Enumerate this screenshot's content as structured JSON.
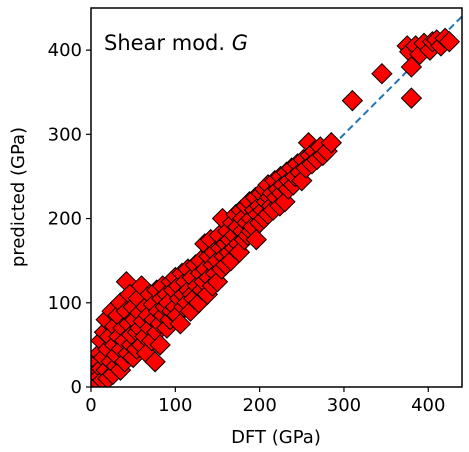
{
  "chart_data": {
    "type": "scatter",
    "annotation": "Shear mod. ",
    "annotation_symbol": "G",
    "xlabel": "DFT (GPa)",
    "ylabel": "predicted (GPa)",
    "xlim": [
      0,
      440
    ],
    "ylim": [
      0,
      450
    ],
    "xticks": [
      0,
      100,
      200,
      300,
      400
    ],
    "yticks": [
      0,
      100,
      200,
      300,
      400
    ],
    "grid": false,
    "marker": "diamond",
    "marker_color": "#ff0000",
    "marker_edge_color": "#000000",
    "reference_line": {
      "style": "dashed",
      "color": "#1f77b4",
      "x": [
        0,
        440
      ],
      "y": [
        0,
        440
      ]
    },
    "points": [
      [
        2,
        5
      ],
      [
        4,
        10
      ],
      [
        5,
        2
      ],
      [
        6,
        18
      ],
      [
        8,
        6
      ],
      [
        8,
        30
      ],
      [
        10,
        12
      ],
      [
        10,
        40
      ],
      [
        12,
        22
      ],
      [
        12,
        55
      ],
      [
        14,
        8
      ],
      [
        15,
        35
      ],
      [
        16,
        65
      ],
      [
        18,
        20
      ],
      [
        18,
        80
      ],
      [
        20,
        45
      ],
      [
        20,
        10
      ],
      [
        22,
        60
      ],
      [
        24,
        30
      ],
      [
        25,
        90
      ],
      [
        26,
        15
      ],
      [
        28,
        50
      ],
      [
        28,
        72
      ],
      [
        30,
        25
      ],
      [
        30,
        38
      ],
      [
        32,
        85
      ],
      [
        33,
        60
      ],
      [
        35,
        20
      ],
      [
        35,
        100
      ],
      [
        36,
        45
      ],
      [
        38,
        70
      ],
      [
        40,
        30
      ],
      [
        40,
        55
      ],
      [
        42,
        90
      ],
      [
        42,
        125
      ],
      [
        44,
        40
      ],
      [
        45,
        75
      ],
      [
        46,
        110
      ],
      [
        48,
        50
      ],
      [
        48,
        62
      ],
      [
        50,
        35
      ],
      [
        50,
        95
      ],
      [
        52,
        80
      ],
      [
        54,
        45
      ],
      [
        55,
        65
      ],
      [
        56,
        105
      ],
      [
        58,
        70
      ],
      [
        58,
        88
      ],
      [
        60,
        50
      ],
      [
        60,
        120
      ],
      [
        62,
        78
      ],
      [
        64,
        60
      ],
      [
        65,
        95
      ],
      [
        66,
        40
      ],
      [
        68,
        85
      ],
      [
        70,
        70
      ],
      [
        70,
        110
      ],
      [
        72,
        55
      ],
      [
        74,
        98
      ],
      [
        75,
        80
      ],
      [
        76,
        30
      ],
      [
        78,
        65
      ],
      [
        78,
        115
      ],
      [
        80,
        90
      ],
      [
        82,
        75
      ],
      [
        82,
        50
      ],
      [
        84,
        105
      ],
      [
        85,
        120
      ],
      [
        86,
        85
      ],
      [
        88,
        95
      ],
      [
        90,
        70
      ],
      [
        90,
        110
      ],
      [
        92,
        100
      ],
      [
        94,
        80
      ],
      [
        95,
        125
      ],
      [
        96,
        90
      ],
      [
        98,
        115
      ],
      [
        100,
        95
      ],
      [
        100,
        130
      ],
      [
        102,
        85
      ],
      [
        104,
        120
      ],
      [
        105,
        105
      ],
      [
        106,
        75
      ],
      [
        108,
        135
      ],
      [
        110,
        110
      ],
      [
        110,
        95
      ],
      [
        112,
        125
      ],
      [
        114,
        100
      ],
      [
        115,
        140
      ],
      [
        116,
        115
      ],
      [
        118,
        90
      ],
      [
        120,
        130
      ],
      [
        120,
        110
      ],
      [
        122,
        105
      ],
      [
        124,
        145
      ],
      [
        126,
        120
      ],
      [
        128,
        100
      ],
      [
        130,
        135
      ],
      [
        130,
        150
      ],
      [
        132,
        115
      ],
      [
        134,
        125
      ],
      [
        135,
        170
      ],
      [
        136,
        140
      ],
      [
        138,
        110
      ],
      [
        140,
        155
      ],
      [
        140,
        130
      ],
      [
        142,
        175
      ],
      [
        144,
        120
      ],
      [
        145,
        145
      ],
      [
        146,
        160
      ],
      [
        148,
        135
      ],
      [
        150,
        150
      ],
      [
        150,
        125
      ],
      [
        152,
        180
      ],
      [
        154,
        165
      ],
      [
        155,
        140
      ],
      [
        156,
        200
      ],
      [
        158,
        155
      ],
      [
        160,
        170
      ],
      [
        160,
        145
      ],
      [
        162,
        185
      ],
      [
        164,
        160
      ],
      [
        165,
        175
      ],
      [
        166,
        150
      ],
      [
        168,
        195
      ],
      [
        170,
        180
      ],
      [
        170,
        165
      ],
      [
        172,
        205
      ],
      [
        174,
        190
      ],
      [
        175,
        170
      ],
      [
        176,
        160
      ],
      [
        178,
        210
      ],
      [
        180,
        185
      ],
      [
        180,
        200
      ],
      [
        182,
        175
      ],
      [
        184,
        215
      ],
      [
        185,
        195
      ],
      [
        186,
        180
      ],
      [
        188,
        220
      ],
      [
        190,
        200
      ],
      [
        190,
        185
      ],
      [
        192,
        190
      ],
      [
        194,
        210
      ],
      [
        195,
        225
      ],
      [
        196,
        175
      ],
      [
        198,
        205
      ],
      [
        200,
        215
      ],
      [
        200,
        195
      ],
      [
        202,
        230
      ],
      [
        204,
        210
      ],
      [
        205,
        200
      ],
      [
        206,
        235
      ],
      [
        208,
        220
      ],
      [
        210,
        205
      ],
      [
        210,
        240
      ],
      [
        212,
        225
      ],
      [
        214,
        215
      ],
      [
        215,
        230
      ],
      [
        216,
        210
      ],
      [
        218,
        245
      ],
      [
        220,
        225
      ],
      [
        222,
        235
      ],
      [
        224,
        215
      ],
      [
        225,
        250
      ],
      [
        226,
        230
      ],
      [
        228,
        240
      ],
      [
        230,
        220
      ],
      [
        232,
        255
      ],
      [
        234,
        235
      ],
      [
        235,
        245
      ],
      [
        238,
        260
      ],
      [
        240,
        240
      ],
      [
        242,
        250
      ],
      [
        245,
        265
      ],
      [
        248,
        255
      ],
      [
        250,
        245
      ],
      [
        252,
        270
      ],
      [
        255,
        260
      ],
      [
        258,
        290
      ],
      [
        260,
        275
      ],
      [
        262,
        265
      ],
      [
        265,
        280
      ],
      [
        268,
        270
      ],
      [
        272,
        285
      ],
      [
        275,
        275
      ],
      [
        280,
        280
      ],
      [
        285,
        290
      ],
      [
        310,
        340
      ],
      [
        345,
        372
      ],
      [
        375,
        405
      ],
      [
        378,
        398
      ],
      [
        380,
        380
      ],
      [
        380,
        343
      ],
      [
        385,
        405
      ],
      [
        390,
        395
      ],
      [
        395,
        408
      ],
      [
        402,
        400
      ],
      [
        405,
        410
      ],
      [
        410,
        412
      ],
      [
        415,
        405
      ],
      [
        420,
        414
      ],
      [
        425,
        410
      ]
    ]
  }
}
